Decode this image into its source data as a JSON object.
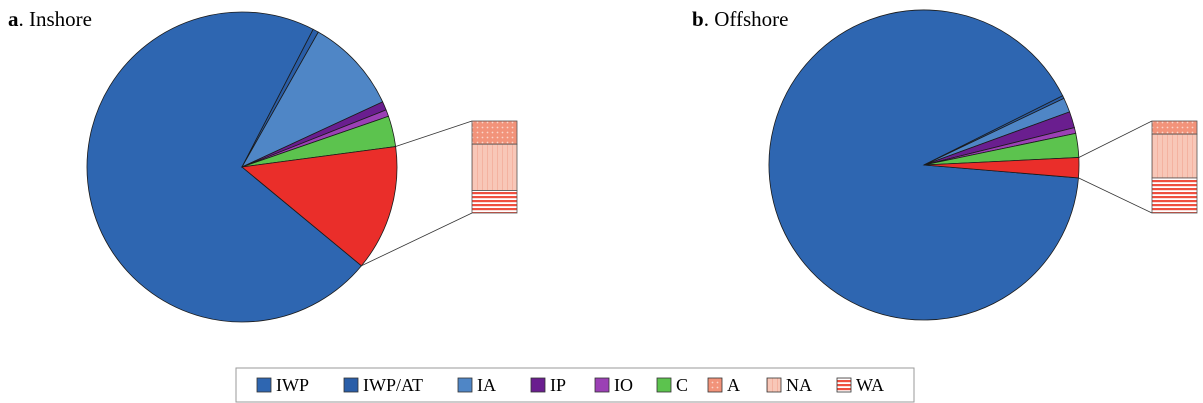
{
  "colors": {
    "IWP": "#2e66b1",
    "IWP/AT": "#2a5ea8",
    "IA": "#4f86c6",
    "IP": "#6a1e8f",
    "IO": "#9b40b5",
    "C": "#5cc34e",
    "A": "#f2937a",
    "NA": "#f8c7b8",
    "WA": "#ef4f3f",
    "split": "#ea2e2a"
  },
  "legend": {
    "items": [
      {
        "key": "IWP",
        "label": "IWP",
        "pattern": "solid"
      },
      {
        "key": "IWP/AT",
        "label": "IWP/AT",
        "pattern": "solid"
      },
      {
        "key": "IA",
        "label": "IA",
        "pattern": "solid"
      },
      {
        "key": "IP",
        "label": "IP",
        "pattern": "solid"
      },
      {
        "key": "IO",
        "label": "IO",
        "pattern": "solid"
      },
      {
        "key": "C",
        "label": "C",
        "pattern": "solid"
      },
      {
        "key": "A",
        "label": "A",
        "pattern": "dots"
      },
      {
        "key": "NA",
        "label": "NA",
        "pattern": "vlines"
      },
      {
        "key": "WA",
        "label": "WA",
        "pattern": "hlines"
      }
    ]
  },
  "chart_data": [
    {
      "type": "pie",
      "panel_letter": "a",
      "title": "Inshore",
      "slices": [
        {
          "label": "IWP",
          "value": 71.6
        },
        {
          "label": "IWP/AT",
          "value": 0.6
        },
        {
          "label": "IA",
          "value": 9.9
        },
        {
          "label": "IP",
          "value": 0.9
        },
        {
          "label": "IO",
          "value": 0.7
        },
        {
          "label": "C",
          "value": 3.2
        },
        {
          "label": "A+NA+WA",
          "value": 13.1,
          "breakdown": true
        }
      ],
      "breakdown": [
        {
          "label": "A",
          "value": 3.3
        },
        {
          "label": "NA",
          "value": 6.6
        },
        {
          "label": "WA",
          "value": 3.2
        }
      ]
    },
    {
      "type": "pie",
      "panel_letter": "b",
      "title": "Offshore",
      "slices": [
        {
          "label": "IWP",
          "value": 91.3
        },
        {
          "label": "IWP/AT",
          "value": 0.3
        },
        {
          "label": "IA",
          "value": 1.5
        },
        {
          "label": "IP",
          "value": 1.7
        },
        {
          "label": "IO",
          "value": 0.6
        },
        {
          "label": "C",
          "value": 2.5
        },
        {
          "label": "A+NA+WA",
          "value": 2.1,
          "breakdown": true
        }
      ],
      "breakdown": [
        {
          "label": "A",
          "value": 0.3
        },
        {
          "label": "NA",
          "value": 1.0
        },
        {
          "label": "WA",
          "value": 0.8
        }
      ]
    }
  ]
}
